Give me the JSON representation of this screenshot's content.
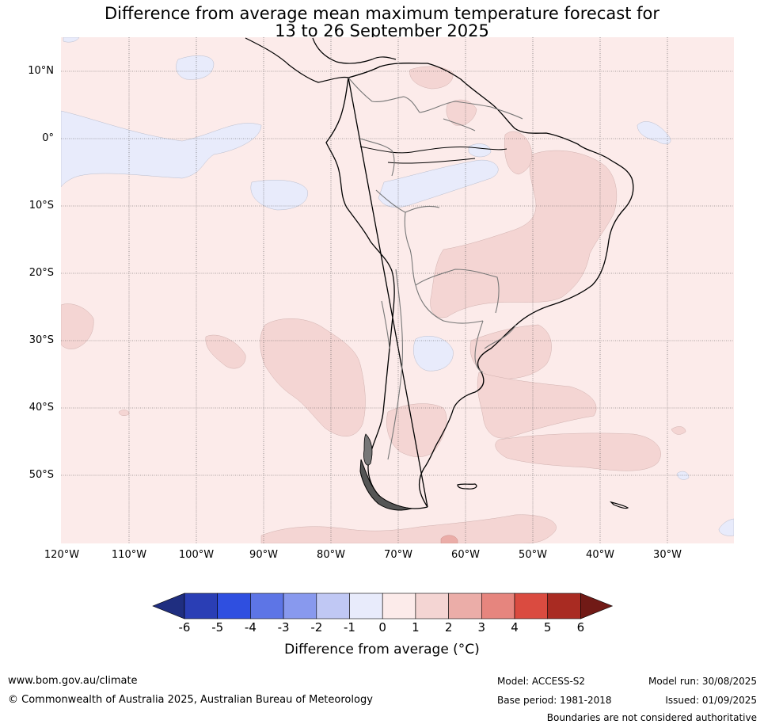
{
  "title": {
    "line1": "Difference from average mean maximum temperature forecast for",
    "line2": "13 to 26 September 2025"
  },
  "map": {
    "lat_labels": [
      "10°N",
      "0°",
      "10°S",
      "20°S",
      "30°S",
      "40°S",
      "50°S"
    ],
    "lon_labels": [
      "120°W",
      "110°W",
      "100°W",
      "90°W",
      "80°W",
      "70°W",
      "60°W",
      "50°W",
      "40°W",
      "30°W"
    ],
    "colors": {
      "background": "#fcebea",
      "warm_1_2": "#f4d5d3",
      "warm_2_3": "#ebada8",
      "cool_0_1": "#e8ebfb",
      "coast": "#000000",
      "border": "#777777",
      "grid": "#555555"
    }
  },
  "colorbar": {
    "ticks": [
      "-6",
      "-5",
      "-4",
      "-3",
      "-2",
      "-1",
      "0",
      "1",
      "2",
      "3",
      "4",
      "5",
      "6"
    ],
    "colors": [
      "#1f2e80",
      "#2a3eb5",
      "#2f4fe0",
      "#5d75e6",
      "#8899ee",
      "#c0c8f4",
      "#e8ebfb",
      "#fcebea",
      "#f4d5d3",
      "#ebada8",
      "#e6857e",
      "#da4b40",
      "#a92b22",
      "#711a16"
    ],
    "label": "Difference from average (°C)"
  },
  "footer": {
    "url": "www.bom.gov.au/climate",
    "copyright": "© Commonwealth of Australia 2025, Australian Bureau of Meteorology",
    "model": "Model: ACCESS-S2",
    "base_period": "Base period: 1981-2018",
    "model_run": "Model run: 30/08/2025",
    "issued": "Issued: 01/09/2025",
    "disclaimer": "Boundaries are not considered authoritative"
  }
}
